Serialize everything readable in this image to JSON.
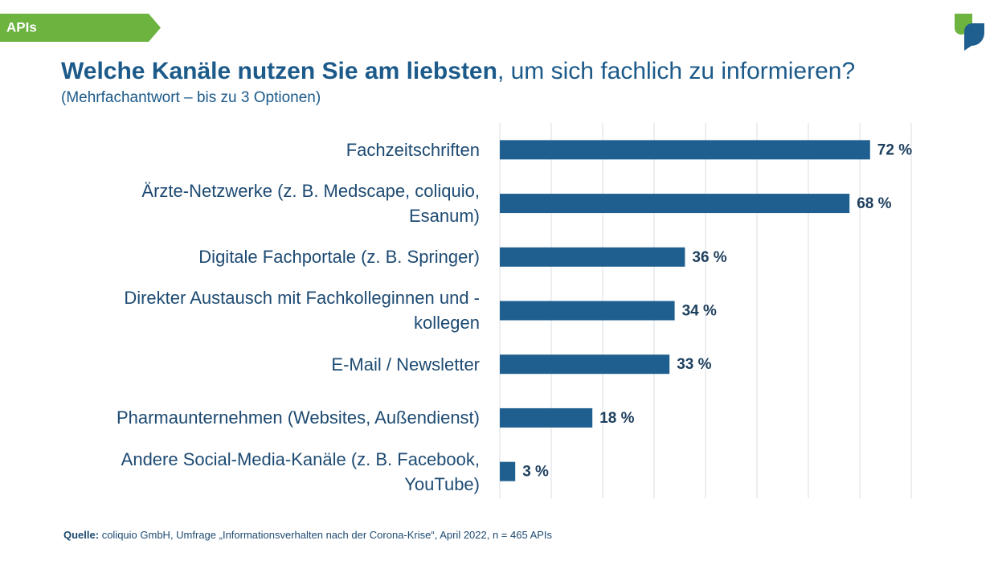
{
  "tag": "APIs",
  "chart_data": {
    "type": "hbar",
    "title": [
      "Welche Kanäle nutzen Sie am liebsten",
      ", um sich fachlich zu informieren?"
    ],
    "subtitle": "(Mehrfachantwort – bis zu 3 Optionen)",
    "categories": [
      "Fachzeitschriften",
      "Ärzte-Netzwerke (z. B. Medscape, coliquio,\nEsanum)",
      "Digitale Fachportale (z. B. Springer)",
      "Direkter Austausch mit Fachkolleginnen und -\nkollegen",
      "E-Mail / Newsletter",
      "Pharmaunternehmen (Websites, Außendienst)",
      "Andere Social-Media-Kanäle (z. B. Facebook,\nYouTube)"
    ],
    "values": [
      72,
      68,
      36,
      34,
      33,
      18,
      3
    ],
    "value_labels": [
      "72 %",
      "68 %",
      "36 %",
      "34 %",
      "33 %",
      "18 %",
      "3 %"
    ],
    "color": "#1f5f8f",
    "xlim": [
      0,
      80
    ],
    "xticks": [
      0,
      10,
      20,
      30,
      40,
      50,
      60,
      70,
      80
    ],
    "grid": true
  },
  "source": {
    "label": "Quelle:",
    "text": " coliquio GmbH, Umfrage „Informationsverhalten nach der Corona-Krise“, April 2022, n = 465 APIs"
  }
}
